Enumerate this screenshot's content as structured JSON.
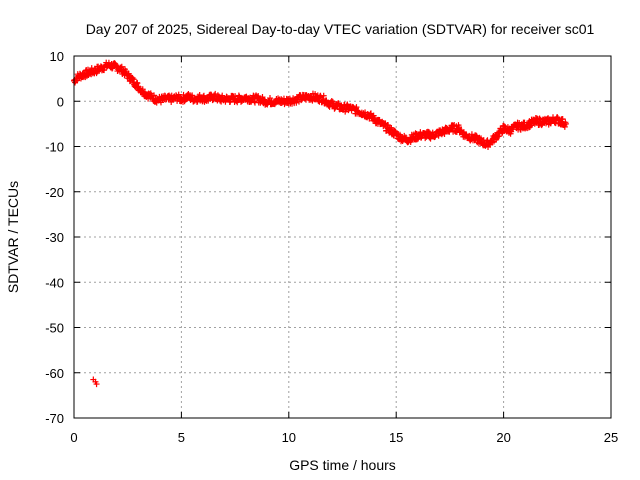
{
  "chart_data": {
    "type": "scatter",
    "title": "Day 207 of 2025, Sidereal Day-to-day VTEC variation (SDTVAR) for receiver sc01",
    "xlabel": "GPS time / hours",
    "ylabel": "SDTVAR / TECUs",
    "xlim": [
      0,
      25
    ],
    "ylim": [
      -70,
      10
    ],
    "xticks": [
      0,
      5,
      10,
      15,
      20,
      25
    ],
    "yticks": [
      10,
      0,
      -10,
      -20,
      -30,
      -40,
      -50,
      -60,
      -70
    ],
    "grid": true,
    "marker": "+",
    "color": "#ff0000",
    "series": [
      {
        "name": "sc01",
        "x": [
          0.0,
          0.2,
          0.5,
          0.8,
          1.0,
          1.2,
          1.4,
          1.6,
          1.8,
          2.0,
          2.2,
          2.4,
          2.6,
          2.8,
          3.0,
          3.2,
          3.4,
          3.6,
          3.8,
          4.0,
          4.2,
          4.4,
          4.6,
          4.8,
          5.0,
          5.3,
          5.6,
          5.9,
          6.2,
          6.5,
          6.8,
          7.1,
          7.4,
          7.7,
          8.0,
          8.3,
          8.6,
          8.9,
          9.2,
          9.5,
          9.8,
          10.1,
          10.4,
          10.7,
          11.0,
          11.3,
          11.6,
          11.9,
          12.2,
          12.5,
          12.8,
          13.1,
          13.4,
          13.7,
          14.0,
          14.3,
          14.6,
          14.9,
          15.2,
          15.5,
          15.8,
          16.1,
          16.4,
          16.7,
          17.0,
          17.3,
          17.6,
          17.9,
          18.2,
          18.5,
          18.8,
          19.0,
          19.2,
          19.4,
          19.6,
          19.8,
          20.0,
          20.3,
          20.6,
          20.9,
          21.2,
          21.5,
          21.8,
          22.1,
          22.4,
          22.7,
          22.9,
          0.9,
          1.0,
          1.05
        ],
        "y": [
          4.5,
          5.5,
          6.0,
          6.5,
          6.8,
          7.2,
          7.6,
          8.0,
          7.8,
          7.5,
          7.0,
          6.2,
          5.2,
          4.2,
          3.2,
          2.2,
          1.5,
          1.0,
          0.5,
          0.3,
          0.5,
          0.5,
          0.5,
          0.8,
          0.5,
          1.0,
          0.5,
          0.8,
          0.5,
          1.0,
          0.5,
          0.5,
          0.5,
          0.5,
          0.8,
          0.5,
          0.5,
          0.0,
          0.0,
          0.0,
          0.0,
          0.2,
          0.5,
          0.8,
          1.0,
          0.8,
          0.5,
          -0.5,
          -1.0,
          -1.5,
          -1.5,
          -2.0,
          -2.5,
          -3.0,
          -4.0,
          -5.0,
          -6.0,
          -7.0,
          -8.0,
          -8.5,
          -8.0,
          -7.5,
          -7.5,
          -7.5,
          -7.0,
          -6.5,
          -6.0,
          -6.0,
          -7.5,
          -8.0,
          -8.5,
          -9.0,
          -9.5,
          -9.0,
          -8.0,
          -7.0,
          -6.0,
          -6.5,
          -5.5,
          -5.5,
          -5.0,
          -4.5,
          -4.5,
          -4.5,
          -4.0,
          -4.5,
          -5.0,
          -61.5,
          -62.0,
          -62.5
        ]
      }
    ]
  }
}
